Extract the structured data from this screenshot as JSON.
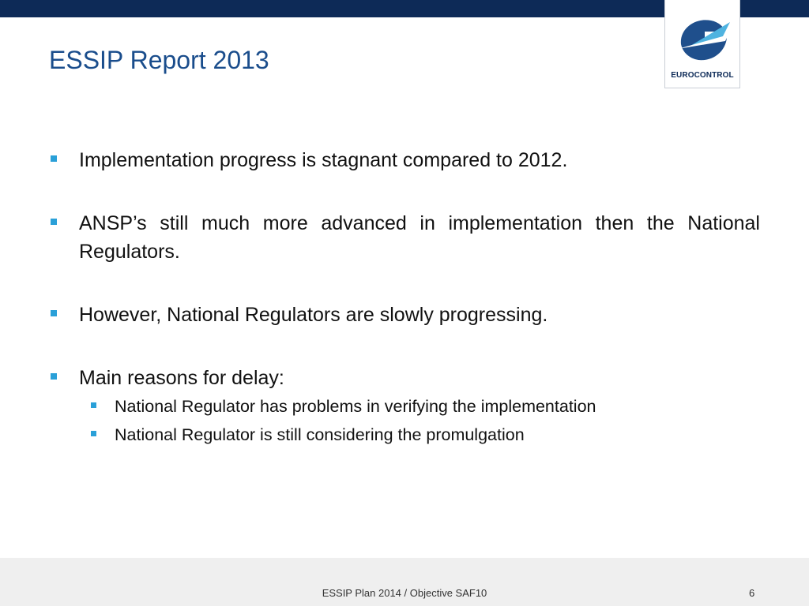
{
  "header": {
    "logo_text": "EUROCONTROL",
    "brand_color": "#0d2a57",
    "accent_color": "#2aa0d8"
  },
  "slide": {
    "title": "ESSIP Report 2013",
    "bullets": [
      "Implementation progress is stagnant compared to 2012.",
      "ANSP’s still much more advanced in implementation then the National Regulators.",
      "However, National Regulators are slowly progressing.",
      "Main reasons for delay:"
    ],
    "sub_bullets": [
      "National Regulator has problems in verifying the implementation",
      "National Regulator is still considering the promulgation"
    ]
  },
  "footer": {
    "text": "ESSIP Plan 2014 / Objective SAF10",
    "page_number": "6"
  }
}
